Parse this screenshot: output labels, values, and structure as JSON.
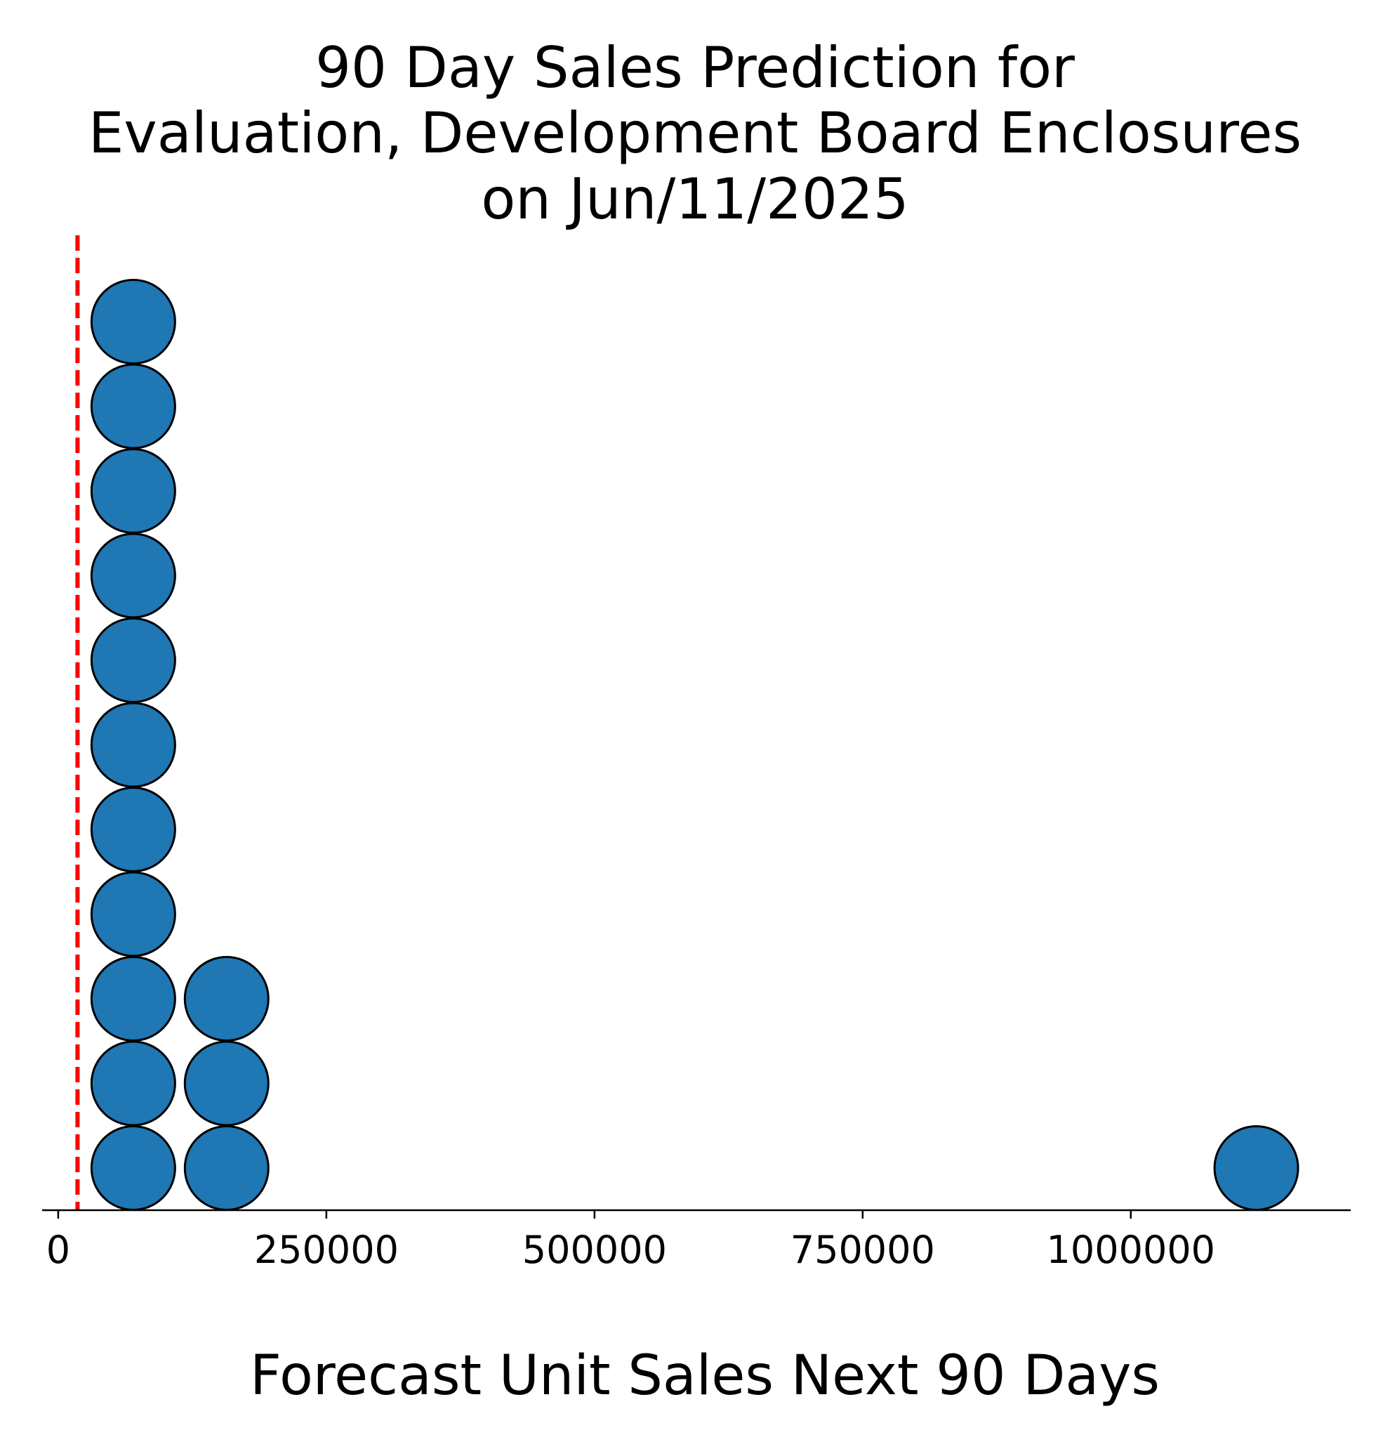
{
  "chart_data": {
    "type": "scatter",
    "title_lines": [
      "90 Day Sales Prediction for",
      "Evaluation, Development Board Enclosures",
      "on Jun/11/2025"
    ],
    "xlabel": "Forecast Unit Sales Next 90 Days",
    "ylabel": "",
    "xlim": [
      -15000,
      1205000
    ],
    "xticks": [
      {
        "value": 0,
        "label": "0"
      },
      {
        "value": 250000,
        "label": "250000"
      },
      {
        "value": 500000,
        "label": "500000"
      },
      {
        "value": 750000,
        "label": "750000"
      },
      {
        "value": 1000000,
        "label": "1000000"
      }
    ],
    "grid": false,
    "reference_line": {
      "x": 18000,
      "color": "#ff0000",
      "style": "dashed"
    },
    "marker_color": "#1f77b4",
    "marker_edge_color": "#000000",
    "stacks": [
      {
        "x": 70000,
        "count": 11
      },
      {
        "x": 157000,
        "count": 3
      },
      {
        "x": 1117000,
        "count": 1
      }
    ]
  }
}
